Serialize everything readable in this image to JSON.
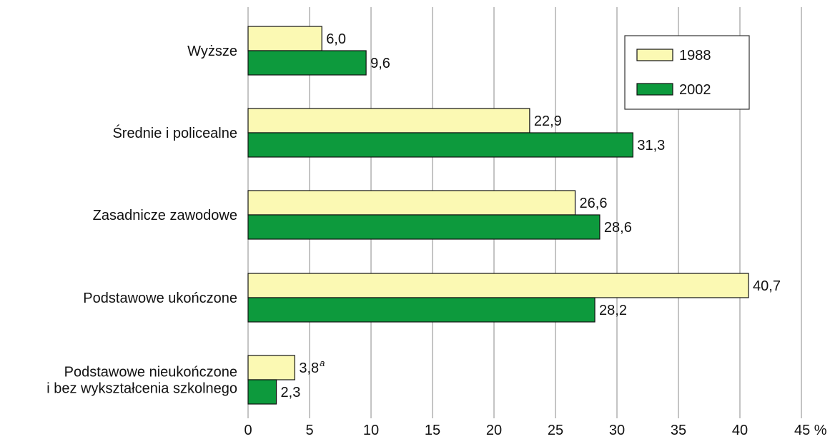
{
  "chart_data": {
    "type": "bar",
    "orientation": "horizontal",
    "categories": [
      [
        "Wyższe"
      ],
      [
        "Średnie i policealne"
      ],
      [
        "Zasadnicze zawodowe"
      ],
      [
        "Podstawowe ukończone"
      ],
      [
        "Podstawowe nieukończone",
        "i bez wykształcenia szkolnego"
      ]
    ],
    "series": [
      {
        "name": "1988",
        "color": "#fbf9b3",
        "values": [
          6.0,
          22.9,
          26.6,
          40.7,
          3.8
        ],
        "labels": [
          "6,0",
          "22,9",
          "26,6",
          "40,7",
          "3,8"
        ],
        "label_sup": [
          "",
          "",
          "",
          "",
          "a"
        ]
      },
      {
        "name": "2002",
        "color": "#0d9a3d",
        "values": [
          9.6,
          31.3,
          28.6,
          28.2,
          2.3
        ],
        "labels": [
          "9,6",
          "31,3",
          "28,6",
          "28,2",
          "2,3"
        ],
        "label_sup": [
          "",
          "",
          "",
          "",
          ""
        ]
      }
    ],
    "xlim": [
      0,
      45
    ],
    "xticks": [
      0,
      5,
      10,
      15,
      20,
      25,
      30,
      35,
      40,
      45
    ],
    "xtick_labels": [
      "0",
      "5",
      "10",
      "15",
      "20",
      "25",
      "30",
      "35",
      "40",
      "45 %"
    ],
    "grid": "vertical",
    "legend_position": "top-right"
  }
}
